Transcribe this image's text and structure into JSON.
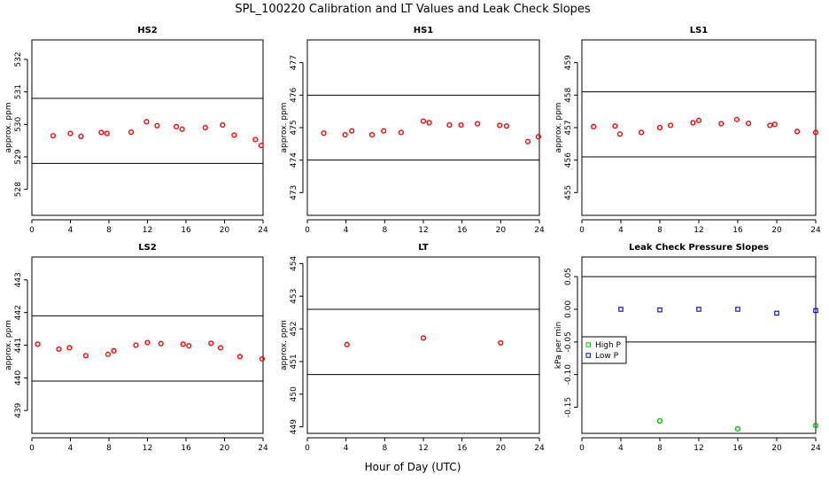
{
  "page_title": "SPL_100220  Calibration and LT Values and Leak Check Slopes",
  "global_xlabel": "Hour of Day (UTC)",
  "colors": {
    "cal_marker": "#ff0000",
    "high_p": "#00bb00",
    "low_p": "#0000cc",
    "ref_line": "#000000"
  },
  "chart_data": [
    {
      "type": "scatter",
      "title": "HS2",
      "xlabel": "",
      "ylabel": "approx. ppm",
      "xlim": [
        0,
        24
      ],
      "ylim": [
        527.2,
        532.6
      ],
      "xticks": [
        "0",
        "4",
        "8",
        "12",
        "16",
        "20",
        "24"
      ],
      "yticks": [
        "528",
        "529",
        "530",
        "531",
        "532"
      ],
      "hlines": [
        530.8,
        528.8
      ],
      "series": [
        {
          "x": [
            2.2,
            4.0,
            5.1,
            7.2,
            7.8,
            10.3,
            11.9,
            13.0,
            15.0,
            15.6,
            18.0,
            19.8,
            21.0,
            23.2,
            23.8
          ],
          "y": [
            529.65,
            529.72,
            529.63,
            529.75,
            529.72,
            529.76,
            530.08,
            529.96,
            529.93,
            529.85,
            529.9,
            529.98,
            529.67,
            529.53,
            529.35
          ]
        }
      ]
    },
    {
      "type": "scatter",
      "title": "HS1",
      "xlabel": "",
      "ylabel": "approx. ppm",
      "xlim": [
        0,
        24
      ],
      "ylim": [
        472.3,
        477.7
      ],
      "xticks": [
        "0",
        "4",
        "8",
        "12",
        "16",
        "20",
        "24"
      ],
      "yticks": [
        "473",
        "474",
        "475",
        "476",
        "477"
      ],
      "hlines": [
        476.0,
        474.0
      ],
      "series": [
        {
          "x": [
            1.7,
            3.9,
            4.6,
            6.7,
            7.9,
            9.7,
            12.0,
            12.6,
            14.7,
            15.9,
            17.6,
            19.9,
            20.6,
            22.8,
            23.9
          ],
          "y": [
            474.83,
            474.78,
            474.9,
            474.78,
            474.9,
            474.85,
            475.2,
            475.15,
            475.08,
            475.08,
            475.12,
            475.07,
            475.05,
            474.57,
            474.72
          ]
        }
      ]
    },
    {
      "type": "scatter",
      "title": "LS1",
      "xlabel": "",
      "ylabel": "approx. ppm",
      "xlim": [
        0,
        24
      ],
      "ylim": [
        454.3,
        459.7
      ],
      "xticks": [
        "0",
        "4",
        "8",
        "12",
        "16",
        "20",
        "24"
      ],
      "yticks": [
        "455",
        "456",
        "457",
        "458",
        "459"
      ],
      "hlines": [
        458.1,
        456.1
      ],
      "series": [
        {
          "x": [
            1.2,
            3.4,
            3.9,
            6.1,
            8.0,
            9.1,
            11.4,
            12.0,
            14.3,
            15.9,
            17.1,
            19.3,
            19.8,
            22.1,
            24.0
          ],
          "y": [
            457.03,
            457.05,
            456.8,
            456.85,
            457.0,
            457.07,
            457.15,
            457.22,
            457.12,
            457.25,
            457.13,
            457.07,
            457.1,
            456.88,
            456.85
          ]
        }
      ]
    },
    {
      "type": "scatter",
      "title": "LS2",
      "xlabel": "",
      "ylabel": "approx. ppm",
      "xlim": [
        0,
        24
      ],
      "ylim": [
        438.3,
        443.7
      ],
      "xticks": [
        "0",
        "4",
        "8",
        "12",
        "16",
        "20",
        "24"
      ],
      "yticks": [
        "439",
        "440",
        "441",
        "442",
        "443"
      ],
      "hlines": [
        441.9,
        439.9
      ],
      "series": [
        {
          "x": [
            0.6,
            2.8,
            3.9,
            5.6,
            7.9,
            8.5,
            10.8,
            12.0,
            13.4,
            15.7,
            16.3,
            18.6,
            19.6,
            21.6,
            23.9
          ],
          "y": [
            441.03,
            440.88,
            440.92,
            440.68,
            440.72,
            440.83,
            441.0,
            441.08,
            441.05,
            441.03,
            440.98,
            441.06,
            440.92,
            440.65,
            440.58
          ]
        }
      ]
    },
    {
      "type": "scatter",
      "title": "LT",
      "xlabel": "",
      "ylabel": "approx. ppm",
      "xlim": [
        0,
        24
      ],
      "ylim": [
        448.8,
        454.2
      ],
      "xticks": [
        "0",
        "4",
        "8",
        "12",
        "16",
        "20",
        "24"
      ],
      "yticks": [
        "449",
        "450",
        "451",
        "452",
        "453",
        "454"
      ],
      "hlines": [
        452.6,
        450.6
      ],
      "series": [
        {
          "x": [
            4.1,
            12.0,
            20.0
          ],
          "y": [
            451.52,
            451.72,
            451.57
          ]
        }
      ]
    },
    {
      "type": "scatter",
      "title": "Leak Check Pressure Slopes",
      "xlabel": "",
      "ylabel": "kPa per min",
      "xlim": [
        0,
        24
      ],
      "ylim": [
        -0.19,
        0.08
      ],
      "xticks": [
        "0",
        "4",
        "8",
        "12",
        "16",
        "20",
        "24"
      ],
      "yticks": [
        "-0.15",
        "-0.10",
        "-0.05",
        "0.00",
        "0.05"
      ],
      "hlines": [
        0.05,
        -0.05
      ],
      "legend_position": "left",
      "series": [
        {
          "name": "High P",
          "x": [
            8,
            16,
            24
          ],
          "y": [
            -0.171,
            -0.183,
            -0.178
          ]
        },
        {
          "name": "Low P",
          "x": [
            4,
            8,
            12,
            16,
            20,
            24
          ],
          "y": [
            0.0,
            -0.001,
            0.0,
            0.0,
            -0.006,
            -0.002
          ]
        }
      ]
    }
  ]
}
